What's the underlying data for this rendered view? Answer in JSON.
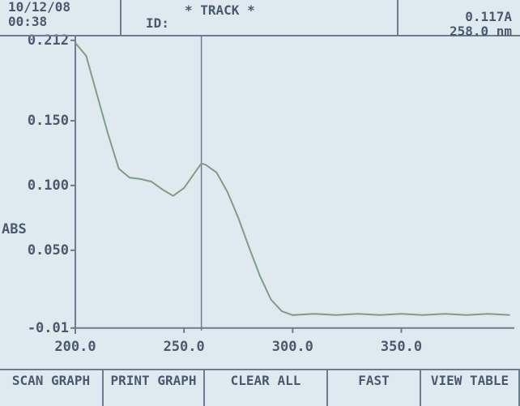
{
  "header": {
    "date": "10/12/08",
    "time": "00:38",
    "id_label": "ID:",
    "mode": "* TRACK *"
  },
  "chart_data": {
    "type": "line",
    "y_label": "ABS",
    "readout": {
      "value": 0.117,
      "label": "0.117A"
    },
    "cursor": {
      "value": 258,
      "label": "258.0 nm"
    },
    "xlim": [
      200,
      402
    ],
    "ylim": [
      -0.012,
      0.215
    ],
    "xticks": [
      {
        "value": 200,
        "label": "200.0"
      },
      {
        "value": 250,
        "label": "250.0"
      },
      {
        "value": 300,
        "label": "300.0"
      },
      {
        "value": 350,
        "label": "350.0"
      }
    ],
    "yticks": [
      {
        "value": -0.01,
        "label": "-0.01"
      },
      {
        "value": 0.05,
        "label": "0.050"
      },
      {
        "value": 0.1,
        "label": "0.100"
      },
      {
        "value": 0.15,
        "label": "0.150"
      },
      {
        "value": 0.212,
        "label": "0.212"
      }
    ],
    "series": [
      {
        "color": "#7f9c84",
        "x": [
          200,
          205,
          210,
          215,
          220,
          225,
          230,
          235,
          240,
          245,
          250,
          255,
          258,
          260,
          265,
          270,
          275,
          280,
          285,
          290,
          295,
          300,
          310,
          320,
          330,
          340,
          350,
          360,
          370,
          380,
          390,
          400
        ],
        "values": [
          0.21,
          0.2,
          0.17,
          0.14,
          0.113,
          0.106,
          0.105,
          0.103,
          0.097,
          0.092,
          0.098,
          0.11,
          0.117,
          0.116,
          0.11,
          0.095,
          0.075,
          0.052,
          0.03,
          0.012,
          0.003,
          0.0,
          0.001,
          0.0,
          0.001,
          0.0,
          0.001,
          0.0,
          0.001,
          0.0,
          0.001,
          0.0
        ]
      }
    ]
  },
  "buttons": [
    "SCAN GRAPH",
    "PRINT GRAPH",
    "CLEAR ALL",
    "FAST",
    "VIEW TABLE"
  ]
}
